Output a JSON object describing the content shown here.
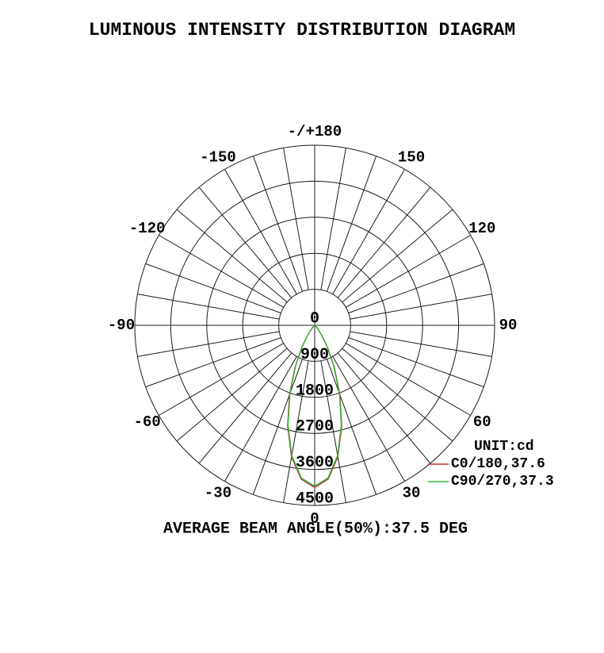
{
  "page": {
    "background": "#ffffff",
    "text_color": "#050505",
    "grid_color": "#1b1b1b"
  },
  "chart_data": {
    "type": "polar",
    "title": "LUMINOUS INTENSITY DISTRIBUTION DIAGRAM",
    "unit_label": "UNIT:cd",
    "caption": "AVERAGE BEAM ANGLE(50%):37.5 DEG",
    "legend": {
      "position": "right-bottom",
      "unit": "cd"
    },
    "grid": {
      "spoke_step_deg": 10,
      "ring_step_cd": 900,
      "rings_cd": [
        900,
        1800,
        2700,
        3600,
        4500
      ],
      "radial_axis_labels": [
        "0",
        "900",
        "1800",
        "2700",
        "3600",
        "4500"
      ],
      "angle_labels": [
        {
          "deg": 0,
          "text": "0"
        },
        {
          "deg": 30,
          "text": "30"
        },
        {
          "deg": 60,
          "text": "60"
        },
        {
          "deg": 90,
          "text": "90"
        },
        {
          "deg": 120,
          "text": "120"
        },
        {
          "deg": 150,
          "text": "150"
        },
        {
          "deg": 180,
          "text": "-/+180"
        },
        {
          "deg": -150,
          "text": "-150"
        },
        {
          "deg": -120,
          "text": "-120"
        },
        {
          "deg": -90,
          "text": "-90"
        },
        {
          "deg": -60,
          "text": "-60"
        },
        {
          "deg": -30,
          "text": "-30"
        }
      ]
    },
    "series": [
      {
        "name": "C0/180,37.6",
        "plane": "C0/180",
        "beam_angle_deg": 37.6,
        "color": "#b53535",
        "angles_deg": [
          0,
          5,
          10,
          15,
          20,
          25,
          30,
          35,
          40,
          45,
          50,
          55,
          60
        ],
        "intensity_cd": [
          4050,
          3859,
          3337,
          2613,
          1845,
          1168,
          658,
          325,
          139,
          51,
          16,
          4,
          1
        ]
      },
      {
        "name": "C90/270,37.3",
        "plane": "C90/270",
        "beam_angle_deg": 37.3,
        "color": "#35b335",
        "angles_deg": [
          0,
          5,
          10,
          15,
          20,
          25,
          30,
          35,
          40,
          45,
          50,
          55,
          60
        ],
        "intensity_cd": [
          4020,
          3828,
          3302,
          2575,
          1808,
          1136,
          633,
          310,
          131,
          48,
          15,
          4,
          1
        ]
      }
    ]
  }
}
